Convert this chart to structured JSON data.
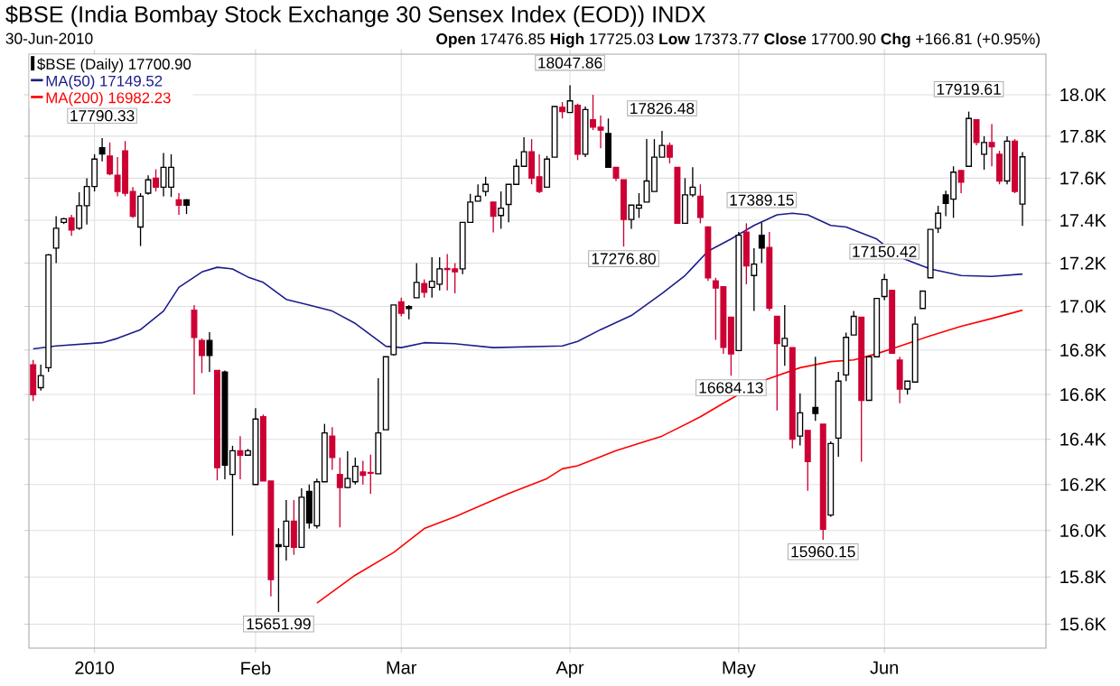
{
  "chart_data": {
    "type": "candlestick",
    "title": "$BSE (India Bombay Stock Exchange 30 Sensex Index (EOD)) INDX",
    "subtitle": "30-Jun-2010",
    "annotations": [
      "**Open** 17476.85 **High** 17725.03 **Low** 17373.77 **Close** 17700.90 **Chg** +166.81 (+0.95%)",
      {
        "text": "17790.33",
        "y": 17790.33
      },
      {
        "text": "15651.99",
        "y": 15651.99
      },
      {
        "text": "18047.86",
        "y": 18047.86
      },
      {
        "text": "17826.48",
        "y": 17826.48
      },
      {
        "text": "17276.80",
        "y": 17276.8
      },
      {
        "text": "17389.15",
        "y": 17389.15
      },
      {
        "text": "16684.13",
        "y": 16684.13
      },
      {
        "text": "15960.15",
        "y": 15960.15
      },
      {
        "text": "17150.42",
        "y": 17150.42
      },
      {
        "text": "17919.61",
        "y": 17919.61
      }
    ],
    "categories": [
      null,
      null,
      null,
      null,
      null,
      null,
      null,
      null,
      "2010",
      null,
      null,
      null,
      null,
      null,
      null,
      null,
      null,
      null,
      null,
      null,
      null,
      null,
      null,
      null,
      null,
      null,
      null,
      null,
      null,
      "Feb",
      null,
      null,
      null,
      null,
      null,
      null,
      null,
      null,
      null,
      null,
      null,
      null,
      null,
      null,
      null,
      null,
      null,
      null,
      "Mar",
      null,
      null,
      null,
      null,
      null,
      null,
      null,
      null,
      null,
      null,
      null,
      null,
      null,
      null,
      null,
      null,
      null,
      null,
      null,
      null,
      null,
      "Apr",
      null,
      null,
      null,
      null,
      null,
      null,
      null,
      null,
      null,
      null,
      null,
      null,
      null,
      null,
      null,
      null,
      null,
      null,
      null,
      null,
      null,
      "May",
      null,
      null,
      null,
      null,
      null,
      null,
      null,
      null,
      null,
      null,
      null,
      null,
      null,
      null,
      null,
      null,
      null,
      null,
      "Jun",
      null,
      null,
      null,
      null,
      null,
      null,
      null,
      null,
      null,
      null,
      null,
      null,
      null,
      null,
      null,
      null,
      null,
      null
    ],
    "series": [
      {
        "type": "candlestick",
        "name": "$BSE (Daily) 17700.90",
        "ohlc": [
          [
            16734,
            16756,
            16570,
            16597
          ],
          [
            16630,
            16734,
            16617,
            16685
          ],
          [
            16721,
            17242,
            16702,
            17238
          ],
          [
            17270,
            17420,
            17200,
            17363
          ],
          [
            17389,
            17411,
            17383,
            17406
          ],
          [
            17411,
            17426,
            17327,
            17355
          ],
          [
            17363,
            17533,
            17355,
            17468
          ],
          [
            17468,
            17600,
            17380,
            17561
          ],
          [
            17561,
            17714,
            17537,
            17691
          ],
          [
            17745,
            17790.33,
            17680,
            17715
          ],
          [
            17706,
            17771,
            17614,
            17620
          ],
          [
            17614,
            17700,
            17514,
            17537
          ],
          [
            17729,
            17777,
            17514,
            17529
          ],
          [
            17537,
            17557,
            17411,
            17420
          ],
          [
            17369,
            17529,
            17279,
            17514
          ],
          [
            17529,
            17614,
            17520,
            17591
          ],
          [
            17600,
            17643,
            17537,
            17557
          ],
          [
            17557,
            17720,
            17514,
            17651
          ],
          [
            17557,
            17714,
            17510,
            17651
          ],
          [
            17497,
            17529,
            17426,
            17470
          ],
          [
            17497,
            17500,
            17430,
            17470
          ],
          [
            16983,
            17006,
            16600,
            16858
          ],
          [
            16844,
            16853,
            16696,
            16775
          ],
          [
            16844,
            16881,
            16701,
            16775
          ],
          [
            16707,
            16707,
            16218,
            16274
          ],
          [
            16700,
            16707,
            16224,
            16285
          ],
          [
            16245,
            16370,
            15977,
            16349
          ],
          [
            16349,
            16413,
            16224,
            16330
          ],
          [
            16330,
            16357,
            16330,
            16349
          ],
          [
            16200,
            16537,
            16200,
            16490
          ],
          [
            16501,
            16510,
            16216,
            16216
          ],
          [
            16216,
            16216,
            15717,
            15790
          ],
          [
            15940,
            16010,
            15651.99,
            15930
          ],
          [
            15932,
            16132,
            15870,
            16040
          ],
          [
            16040,
            16132,
            15895,
            15927
          ],
          [
            15927,
            16184,
            15927,
            16145
          ],
          [
            16171,
            16200,
            16008,
            16033
          ],
          [
            16020,
            16227,
            16008,
            16213
          ],
          [
            16213,
            16468,
            16213,
            16427
          ],
          [
            16413,
            16454,
            16265,
            16319
          ],
          [
            16245,
            16319,
            16014,
            16187
          ],
          [
            16187,
            16346,
            16184,
            16227
          ],
          [
            16213,
            16319,
            16200,
            16280
          ],
          [
            16256,
            16305,
            16200,
            16240
          ],
          [
            16253,
            16332,
            16160,
            16250
          ],
          [
            16248,
            16672,
            16248,
            16427
          ],
          [
            16441,
            16770,
            16441,
            16770
          ],
          [
            16778,
            17006,
            16775,
            17006
          ],
          [
            17020,
            17039,
            16955,
            16969
          ],
          [
            16998,
            17006,
            16941,
            16990
          ],
          [
            17039,
            17200,
            17039,
            17110
          ],
          [
            17105,
            17125,
            17039,
            17065
          ],
          [
            17087,
            17228,
            17039,
            17115
          ],
          [
            17101,
            17228,
            17073,
            17172
          ],
          [
            17175,
            17242,
            17073,
            17170
          ],
          [
            17172,
            17200,
            17060,
            17160
          ],
          [
            17172,
            17391,
            17150,
            17391
          ],
          [
            17391,
            17525,
            17391,
            17487
          ],
          [
            17491,
            17571,
            17491,
            17514
          ],
          [
            17537,
            17606,
            17514,
            17571
          ],
          [
            17486,
            17486,
            17343,
            17420
          ],
          [
            17423,
            17537,
            17360,
            17457
          ],
          [
            17474,
            17571,
            17389,
            17571
          ],
          [
            17571,
            17691,
            17571,
            17657
          ],
          [
            17657,
            17794,
            17657,
            17726
          ],
          [
            17726,
            17786,
            17571,
            17600
          ],
          [
            17606,
            17714,
            17529,
            17537
          ],
          [
            17557,
            17706,
            17557,
            17691
          ],
          [
            17700,
            17943,
            17700,
            17943
          ],
          [
            17940,
            17966,
            17886,
            17920
          ],
          [
            17915,
            18047.86,
            17915,
            17971
          ],
          [
            17949,
            17957,
            17686,
            17714
          ],
          [
            17714,
            17943,
            17700,
            17929
          ],
          [
            17880,
            18000,
            17829,
            17843
          ],
          [
            17843,
            17900,
            17743,
            17829
          ],
          [
            17814,
            17886,
            17651,
            17651
          ],
          [
            17651,
            17651,
            17586,
            17600
          ],
          [
            17591,
            17591,
            17276.8,
            17403
          ],
          [
            17403,
            17471,
            17360,
            17471
          ],
          [
            17457,
            17529,
            17411,
            17471
          ],
          [
            17486,
            17786,
            17486,
            17586
          ],
          [
            17537,
            17786,
            17537,
            17700
          ],
          [
            17700,
            17826.48,
            17700,
            17757
          ],
          [
            17757,
            17771,
            17671,
            17700
          ],
          [
            17651,
            17651,
            17386,
            17386
          ],
          [
            17386,
            17600,
            17386,
            17520
          ],
          [
            17520,
            17651,
            17510,
            17557
          ],
          [
            17514,
            17571,
            17386,
            17414
          ],
          [
            17369,
            17369,
            17118,
            17132
          ],
          [
            17118,
            17132,
            16847,
            17084
          ],
          [
            17090,
            17090,
            16783,
            16812
          ],
          [
            16950,
            16950,
            16684.13,
            16783
          ],
          [
            16798,
            17345,
            16798,
            17330
          ],
          [
            17345,
            17386,
            17101,
            17186
          ],
          [
            17143,
            17270,
            16980,
            17194
          ],
          [
            17330,
            17389.15,
            17200,
            17270
          ],
          [
            17273,
            17345,
            16978,
            16992
          ],
          [
            16955,
            16955,
            16528,
            16830
          ],
          [
            16819,
            17006,
            16729,
            16853
          ],
          [
            16811,
            16811,
            16360,
            16400
          ],
          [
            16413,
            16605,
            16373,
            16517
          ],
          [
            16440,
            16440,
            16173,
            16302
          ],
          [
            16542,
            16770,
            16482,
            16515
          ],
          [
            16466,
            16466,
            15960.15,
            16005
          ],
          [
            16067,
            16390,
            16060,
            16381
          ],
          [
            16405,
            16702,
            16322,
            16660
          ],
          [
            16688,
            16880,
            16660,
            16858
          ],
          [
            16869,
            16980,
            16869,
            16953
          ],
          [
            16950,
            16950,
            16300,
            16573
          ],
          [
            16573,
            16770,
            16573,
            16770
          ],
          [
            16770,
            17036,
            16770,
            17036
          ],
          [
            17045,
            17150.42,
            17028,
            17123
          ],
          [
            17073,
            17073,
            16786,
            16786
          ],
          [
            16756,
            16770,
            16560,
            16625
          ],
          [
            16625,
            16660,
            16600,
            16660
          ],
          [
            16655,
            16953,
            16655,
            16919
          ],
          [
            16990,
            17070,
            16990,
            17070
          ],
          [
            17132,
            17357,
            17132,
            17357
          ],
          [
            17363,
            17468,
            17340,
            17434
          ],
          [
            17520,
            17540,
            17420,
            17480
          ],
          [
            17500,
            17657,
            17411,
            17629
          ],
          [
            17636,
            17636,
            17529,
            17580
          ],
          [
            17657,
            17919.61,
            17657,
            17886
          ],
          [
            17880,
            17880,
            17757,
            17771
          ],
          [
            17714,
            17800,
            17640,
            17771
          ],
          [
            17771,
            17857,
            17657,
            17750
          ],
          [
            17714,
            17729,
            17571,
            17586
          ],
          [
            17586,
            17800,
            17571,
            17777
          ],
          [
            17777,
            17786,
            17529,
            17537
          ],
          [
            17476.85,
            17725.03,
            17373.77,
            17700.9
          ]
        ],
        "colors": [
          "#cc0033",
          "#ffffff",
          "#ffffff",
          "#ffffff",
          "#ffffff",
          "#cc0033",
          "#ffffff",
          "#ffffff",
          "#ffffff",
          "#000000",
          "#cc0033",
          "#cc0033",
          "#cc0033",
          "#cc0033",
          "#ffffff",
          "#ffffff",
          "#cc0033",
          "#ffffff",
          "#ffffff",
          "#cc0033",
          "#000000",
          "#cc0033",
          "#cc0033",
          "#000000",
          "#cc0033",
          "#000000",
          "#ffffff",
          "#cc0033",
          "#ffffff",
          "#ffffff",
          "#cc0033",
          "#cc0033",
          "#000000",
          "#ffffff",
          "#cc0033",
          "#ffffff",
          "#000000",
          "#ffffff",
          "#ffffff",
          "#cc0033",
          "#cc0033",
          "#ffffff",
          "#ffffff",
          "#cc0033",
          "#cc0033",
          "#ffffff",
          "#ffffff",
          "#ffffff",
          "#cc0033",
          "#000000",
          "#ffffff",
          "#cc0033",
          "#ffffff",
          "#ffffff",
          "#cc0033",
          "#cc0033",
          "#ffffff",
          "#ffffff",
          "#ffffff",
          "#ffffff",
          "#cc0033",
          "#ffffff",
          "#ffffff",
          "#ffffff",
          "#ffffff",
          "#cc0033",
          "#cc0033",
          "#ffffff",
          "#ffffff",
          "#cc0033",
          "#ffffff",
          "#cc0033",
          "#ffffff",
          "#cc0033",
          "#cc0033",
          "#000000",
          "#cc0033",
          "#cc0033",
          "#ffffff",
          "#ffffff",
          "#ffffff",
          "#ffffff",
          "#ffffff",
          "#cc0033",
          "#cc0033",
          "#ffffff",
          "#ffffff",
          "#cc0033",
          "#cc0033",
          "#cc0033",
          "#cc0033",
          "#cc0033",
          "#ffffff",
          "#cc0033",
          "#ffffff",
          "#000000",
          "#cc0033",
          "#cc0033",
          "#ffffff",
          "#cc0033",
          "#ffffff",
          "#cc0033",
          "#000000",
          "#cc0033",
          "#ffffff",
          "#ffffff",
          "#ffffff",
          "#ffffff",
          "#cc0033",
          "#ffffff",
          "#ffffff",
          "#ffffff",
          "#cc0033",
          "#cc0033",
          "#ffffff",
          "#ffffff",
          "#ffffff",
          "#ffffff",
          "#ffffff",
          "#000000",
          "#ffffff",
          "#cc0033",
          "#ffffff",
          "#cc0033",
          "#ffffff",
          "#cc0033",
          "#cc0033",
          "#ffffff",
          "#cc0033",
          "#ffffff"
        ]
      },
      {
        "type": "line",
        "name": "MA(50) 17149.52",
        "color": "#1c1c8c",
        "values": [
          16806,
          null,
          null,
          16819,
          null,
          null,
          null,
          null,
          null,
          16833,
          null,
          16853,
          null,
          null,
          16894,
          null,
          null,
          16978,
          null,
          17087,
          null,
          null,
          17158,
          null,
          17180,
          null,
          17172,
          null,
          17135,
          null,
          17110,
          null,
          null,
          17033,
          null,
          null,
          17006,
          null,
          null,
          16978,
          null,
          null,
          16922,
          null,
          null,
          null,
          16817,
          null,
          16811,
          null,
          null,
          16833,
          null,
          null,
          null,
          16828,
          null,
          null,
          null,
          null,
          16811,
          null,
          null,
          null,
          null,
          null,
          null,
          null,
          null,
          16819,
          null,
          16839,
          null,
          null,
          16894,
          null,
          null,
          null,
          16958,
          null,
          null,
          null,
          17059,
          null,
          null,
          17143,
          null,
          null,
          17256,
          null,
          null,
          17313,
          null,
          null,
          17375,
          null,
          null,
          17426,
          null,
          17434,
          null,
          17426,
          null,
          null,
          17375,
          null,
          17369,
          null,
          null,
          null,
          17313,
          null,
          null,
          17228,
          null,
          null,
          null,
          17172,
          null,
          null,
          null,
          17143,
          null,
          null,
          null,
          17138,
          null,
          null,
          null,
          17149.52
        ]
      },
      {
        "type": "line",
        "name": "MA(200) 16982.23",
        "color": "#ff0000",
        "values": [
          null,
          null,
          null,
          null,
          null,
          null,
          null,
          null,
          null,
          null,
          null,
          null,
          null,
          null,
          null,
          null,
          null,
          null,
          null,
          null,
          null,
          null,
          null,
          null,
          null,
          null,
          null,
          null,
          null,
          null,
          null,
          null,
          null,
          null,
          null,
          null,
          null,
          15690,
          null,
          null,
          null,
          null,
          15808,
          null,
          null,
          null,
          null,
          15905,
          null,
          null,
          null,
          16008,
          null,
          null,
          null,
          16060,
          null,
          null,
          null,
          null,
          null,
          null,
          16161,
          null,
          null,
          null,
          null,
          16227,
          null,
          16270,
          null,
          16283,
          null,
          null,
          null,
          null,
          16349,
          null,
          null,
          null,
          null,
          null,
          16413,
          null,
          null,
          null,
          null,
          16500,
          null,
          null,
          16560,
          null,
          null,
          null,
          null,
          16660,
          null,
          null,
          null,
          null,
          16721,
          null,
          null,
          null,
          16748,
          null,
          null,
          16756,
          null,
          null,
          16784,
          null,
          null,
          16817,
          null,
          null,
          null,
          16866,
          null,
          null,
          null,
          16908,
          null,
          null,
          null,
          16944,
          null,
          null,
          null,
          16982.23
        ]
      }
    ],
    "ylim": [
      15500,
      18200
    ],
    "yticks": [
      {
        "value": 15600,
        "label": "15.6K"
      },
      {
        "value": 15800,
        "label": "15.8K"
      },
      {
        "value": 16000,
        "label": "16.0K"
      },
      {
        "value": 16200,
        "label": "16.2K"
      },
      {
        "value": 16400,
        "label": "16.4K"
      },
      {
        "value": 16600,
        "label": "16.6K"
      },
      {
        "value": 16800,
        "label": "16.8K"
      },
      {
        "value": 17000,
        "label": "17.0K"
      },
      {
        "value": 17200,
        "label": "17.2K"
      },
      {
        "value": 17400,
        "label": "17.4K"
      },
      {
        "value": 17600,
        "label": "17.6K"
      },
      {
        "value": 17800,
        "label": "17.8K"
      },
      {
        "value": 18000,
        "label": "18.0K"
      }
    ],
    "log": true,
    "grid": true,
    "legend": "top left"
  }
}
